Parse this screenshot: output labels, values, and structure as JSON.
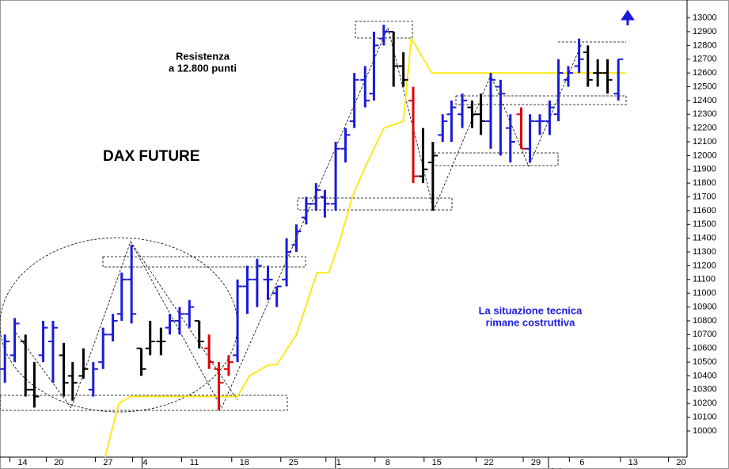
{
  "chart_data": {
    "type": "ohlc",
    "title": "DAX FUTURE",
    "annotations": [
      {
        "lines": [
          "Resistenza",
          "a 12.800 punti"
        ],
        "color": "#000000"
      },
      {
        "lines": [
          "La situazione tecnica",
          "rimane costruttiva"
        ],
        "color": "#1a1adc"
      }
    ],
    "xlim": [
      0,
      70
    ],
    "ylim": [
      9810,
      13130
    ],
    "yticks": [
      10000,
      10100,
      10200,
      10300,
      10400,
      10500,
      10600,
      10700,
      10800,
      10900,
      11000,
      11100,
      11200,
      11300,
      11400,
      11500,
      11600,
      11700,
      11800,
      11900,
      12000,
      12100,
      12200,
      12300,
      12400,
      12500,
      12600,
      12700,
      12800,
      12900,
      13000
    ],
    "xticks": [
      {
        "value": 2.3,
        "label": "14"
      },
      {
        "value": 6,
        "label": "20"
      },
      {
        "value": 11,
        "label": "27"
      },
      {
        "value": 14.8,
        "label": "4"
      },
      {
        "value": 19.8,
        "label": "11"
      },
      {
        "value": 24.9,
        "label": "18"
      },
      {
        "value": 29.9,
        "label": "25"
      },
      {
        "value": 34.5,
        "label": "1"
      },
      {
        "value": 39.5,
        "label": "8"
      },
      {
        "value": 44.5,
        "label": "15"
      },
      {
        "value": 49.8,
        "label": "22"
      },
      {
        "value": 54.6,
        "label": "29"
      },
      {
        "value": 59.3,
        "label": "6"
      },
      {
        "value": 64.5,
        "label": "13"
      },
      {
        "value": 69.4,
        "label": "20"
      }
    ],
    "months": [
      {
        "value": 14.8,
        "label": "May"
      },
      {
        "value": 34.5,
        "label": "June"
      },
      {
        "value": 56.2,
        "label": "July"
      }
    ],
    "x": [
      0.5,
      1.5,
      2.6,
      3.5,
      4.4,
      5.4,
      6.5,
      7.4,
      8.5,
      9.5,
      10.5,
      11.5,
      12.4,
      13.4,
      14.4,
      15.3,
      16.4,
      17.3,
      18.3,
      19.3,
      20.3,
      21.3,
      22.3,
      23.3,
      24.2,
      25.2,
      26.2,
      27.3,
      28.2,
      29.2,
      30.2,
      31.2,
      32.2,
      33.1,
      34.2,
      35.2,
      36.1,
      37.2,
      38.1,
      39.1,
      40.1,
      41.1,
      42.1,
      43.1,
      44.1,
      45.1,
      46.0,
      47.1,
      48.1,
      49.0,
      50.0,
      51.0,
      52.0,
      53.1,
      54.0,
      55.0,
      56.0,
      56.9,
      57.9,
      59.0,
      59.9,
      60.9,
      61.9,
      63.0
    ],
    "open": [
      10450,
      10550,
      10650,
      10300,
      10550,
      10650,
      10550,
      10400,
      10400,
      10300,
      10500,
      10700,
      10850,
      11100,
      10600,
      10600,
      10650,
      10750,
      10800,
      10850,
      10800,
      10600,
      10450,
      10450,
      10550,
      11050,
      11100,
      11100,
      11000,
      11100,
      11350,
      11550,
      11650,
      11700,
      11650,
      12050,
      12250,
      12550,
      12450,
      12850,
      12900,
      12650,
      12400,
      11850,
      11950,
      12150,
      12300,
      12300,
      12350,
      12300,
      12250,
      12500,
      12200,
      12300,
      12050,
      12250,
      12250,
      12300,
      12550,
      12650,
      12750,
      12600,
      12600,
      12450
    ],
    "high": [
      10700,
      10820,
      10700,
      10500,
      10800,
      10800,
      10640,
      10500,
      10600,
      10500,
      10750,
      10850,
      11150,
      11350,
      10600,
      10800,
      10750,
      10850,
      10900,
      10950,
      10800,
      10700,
      10500,
      10550,
      11100,
      11200,
      11250,
      11200,
      11050,
      11400,
      11500,
      11700,
      11800,
      11750,
      12100,
      12200,
      12600,
      12650,
      12900,
      12950,
      12900,
      12750,
      12500,
      12200,
      12100,
      12300,
      12400,
      12450,
      12400,
      12450,
      12600,
      12550,
      12300,
      12350,
      12300,
      12300,
      12400,
      12700,
      12650,
      12850,
      12800,
      12700,
      12700,
      12700
    ],
    "low": [
      10350,
      10500,
      10250,
      10170,
      10500,
      10350,
      10250,
      10220,
      10380,
      10250,
      10450,
      10650,
      10800,
      10780,
      10400,
      10550,
      10550,
      10700,
      10700,
      10750,
      10600,
      10450,
      10150,
      10400,
      10500,
      10850,
      10900,
      10950,
      10900,
      11050,
      11300,
      11500,
      11600,
      11550,
      11600,
      11950,
      12200,
      12350,
      12400,
      12800,
      12500,
      12500,
      11800,
      11800,
      11600,
      12100,
      12100,
      12200,
      12200,
      12150,
      12050,
      12000,
      11950,
      12050,
      11950,
      12150,
      12150,
      12250,
      12500,
      12600,
      12500,
      12500,
      12450,
      12400
    ],
    "close": [
      10650,
      10780,
      10300,
      10250,
      10750,
      10750,
      10350,
      10350,
      10450,
      10450,
      10700,
      10800,
      11100,
      10850,
      10450,
      10650,
      10650,
      10800,
      10850,
      10900,
      10650,
      10500,
      10350,
      10500,
      11050,
      11100,
      11200,
      11100,
      11050,
      11300,
      11450,
      11650,
      11750,
      11650,
      12050,
      12150,
      12550,
      12400,
      12800,
      12900,
      12650,
      12550,
      11850,
      11900,
      12000,
      12250,
      12350,
      12400,
      12300,
      12250,
      12550,
      12450,
      12100,
      12050,
      12250,
      12250,
      12350,
      12600,
      12600,
      12700,
      12550,
      12600,
      12550,
      12700
    ],
    "bar_colors": [
      "#1a1adc",
      "#1a1adc",
      "#000000",
      "#000000",
      "#1a1adc",
      "#1a1adc",
      "#000000",
      "#000000",
      "#000000",
      "#1a1adc",
      "#1a1adc",
      "#1a1adc",
      "#1a1adc",
      "#1a1adc",
      "#000000",
      "#000000",
      "#000000",
      "#1a1adc",
      "#1a1adc",
      "#1a1adc",
      "#000000",
      "#e00000",
      "#e00000",
      "#e00000",
      "#1a1adc",
      "#1a1adc",
      "#1a1adc",
      "#1a1adc",
      "#1a1adc",
      "#1a1adc",
      "#1a1adc",
      "#1a1adc",
      "#1a1adc",
      "#1a1adc",
      "#1a1adc",
      "#1a1adc",
      "#1a1adc",
      "#1a1adc",
      "#1a1adc",
      "#1a1adc",
      "#000000",
      "#000000",
      "#e00000",
      "#000000",
      "#000000",
      "#1a1adc",
      "#1a1adc",
      "#1a1adc",
      "#000000",
      "#000000",
      "#1a1adc",
      "#1a1adc",
      "#1a1adc",
      "#e00000",
      "#1a1adc",
      "#1a1adc",
      "#1a1adc",
      "#1a1adc",
      "#1a1adc",
      "#1a1adc",
      "#000000",
      "#000000",
      "#000000",
      "#1a1adc"
    ],
    "line": {
      "color": "#ffe81a",
      "x": [
        10.7,
        12.1,
        13.3,
        24.2,
        25.4,
        27.4,
        28.2,
        30.2,
        32.3,
        33.5,
        34.7,
        35.9,
        37.1,
        39.1,
        41.1,
        41.9,
        44.0,
        63.7
      ],
      "values": [
        9810,
        10200,
        10250,
        10250,
        10400,
        10480,
        10480,
        10700,
        11150,
        11150,
        11400,
        11700,
        11900,
        12200,
        12250,
        12850,
        12600,
        12600
      ]
    }
  }
}
